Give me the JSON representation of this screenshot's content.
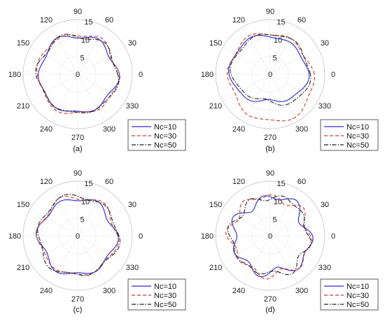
{
  "chart_data": [
    {
      "type": "polar-line",
      "panel_label": "(a)",
      "angle_ticks": [
        "0",
        "30",
        "60",
        "90",
        "120",
        "150",
        "180",
        "210",
        "240",
        "270",
        "300",
        "330"
      ],
      "r_ticks": [
        "0",
        "5",
        "10",
        "15"
      ],
      "rlim": [
        0,
        15
      ],
      "legend_position": "bottom-right",
      "series": [
        {
          "name": "Nc=10",
          "style": "solid",
          "color": "#2a2ad0",
          "base": 10.6,
          "harmonics": [
            [
              6,
              0.55,
              0.2
            ],
            [
              5,
              0.25,
              1.1
            ],
            [
              3,
              0.2,
              0.4
            ]
          ]
        },
        {
          "name": "Nc=30",
          "style": "dashed",
          "color": "#cc3a2a",
          "base": 11.0,
          "harmonics": [
            [
              6,
              0.45,
              0.5
            ],
            [
              4,
              0.3,
              1.9
            ],
            [
              7,
              0.2,
              0.2
            ]
          ]
        },
        {
          "name": "Nc=50",
          "style": "dashdot",
          "color": "#222222",
          "base": 10.8,
          "harmonics": [
            [
              6,
              0.5,
              0.9
            ],
            [
              5,
              0.3,
              2.6
            ],
            [
              2,
              0.2,
              0.8
            ]
          ]
        }
      ]
    },
    {
      "type": "polar-line",
      "panel_label": "(b)",
      "angle_ticks": [
        "0",
        "30",
        "60",
        "90",
        "120",
        "150",
        "180",
        "210",
        "240",
        "270",
        "300",
        "330"
      ],
      "r_ticks": [
        "0",
        "5",
        "10",
        "15"
      ],
      "rlim": [
        0,
        15
      ],
      "legend_position": "bottom-right",
      "series": [
        {
          "name": "Nc=10",
          "style": "solid",
          "color": "#2a2ad0",
          "base": 9.8,
          "harmonics": [
            [
              1,
              1.4,
              4.4
            ],
            [
              2,
              0.9,
              0.3
            ],
            [
              6,
              0.4,
              0.5
            ],
            [
              3,
              0.3,
              1.2
            ]
          ]
        },
        {
          "name": "Nc=30",
          "style": "dashed",
          "color": "#cc3a2a",
          "base": 11.8,
          "harmonics": [
            [
              1,
              0.9,
              1.4
            ],
            [
              2,
              0.6,
              2.2
            ],
            [
              6,
              0.5,
              0.1
            ]
          ]
        },
        {
          "name": "Nc=50",
          "style": "dashdot",
          "color": "#222222",
          "base": 10.0,
          "harmonics": [
            [
              1,
              1.5,
              5.0
            ],
            [
              2,
              0.8,
              0.6
            ],
            [
              6,
              0.4,
              0.9
            ],
            [
              3,
              0.4,
              2.4
            ]
          ]
        }
      ]
    },
    {
      "type": "polar-line",
      "panel_label": "(c)",
      "angle_ticks": [
        "0",
        "30",
        "60",
        "90",
        "120",
        "150",
        "180",
        "210",
        "240",
        "270",
        "300",
        "330"
      ],
      "r_ticks": [
        "0",
        "5",
        "10",
        "15"
      ],
      "rlim": [
        0,
        15
      ],
      "legend_position": "bottom-right",
      "series": [
        {
          "name": "Nc=10",
          "style": "solid",
          "color": "#2a2ad0",
          "base": 10.4,
          "harmonics": [
            [
              6,
              0.7,
              0.3
            ],
            [
              4,
              0.3,
              1.0
            ],
            [
              1,
              0.3,
              2.0
            ]
          ]
        },
        {
          "name": "Nc=30",
          "style": "dashed",
          "color": "#cc3a2a",
          "base": 10.7,
          "harmonics": [
            [
              6,
              0.6,
              0.8
            ],
            [
              5,
              0.3,
              2.1
            ]
          ]
        },
        {
          "name": "Nc=50",
          "style": "dashdot",
          "color": "#222222",
          "base": 10.9,
          "harmonics": [
            [
              6,
              0.6,
              1.3
            ],
            [
              3,
              0.3,
              0.4
            ]
          ]
        }
      ]
    },
    {
      "type": "polar-line",
      "panel_label": "(d)",
      "angle_ticks": [
        "0",
        "30",
        "60",
        "90",
        "120",
        "150",
        "180",
        "210",
        "240",
        "270",
        "300",
        "330"
      ],
      "r_ticks": [
        "0",
        "5",
        "10",
        "15"
      ],
      "rlim": [
        0,
        15
      ],
      "legend_position": "bottom-right",
      "series": [
        {
          "name": "Nc=10",
          "style": "solid",
          "color": "#2a2ad0",
          "base": 10.4,
          "harmonics": [
            [
              7,
              1.1,
              0.1
            ],
            [
              4,
              0.6,
              1.6
            ],
            [
              1,
              0.4,
              0.2
            ],
            [
              3,
              0.4,
              2.2
            ]
          ]
        },
        {
          "name": "Nc=30",
          "style": "dashed",
          "color": "#cc3a2a",
          "base": 10.8,
          "harmonics": [
            [
              8,
              0.9,
              0.7
            ],
            [
              5,
              0.5,
              2.8
            ],
            [
              2,
              0.3,
              1.4
            ]
          ]
        },
        {
          "name": "Nc=50",
          "style": "dashdot",
          "color": "#222222",
          "base": 10.6,
          "harmonics": [
            [
              8,
              0.7,
              1.9
            ],
            [
              6,
              0.5,
              0.4
            ],
            [
              3,
              0.3,
              2.9
            ]
          ]
        }
      ]
    }
  ]
}
